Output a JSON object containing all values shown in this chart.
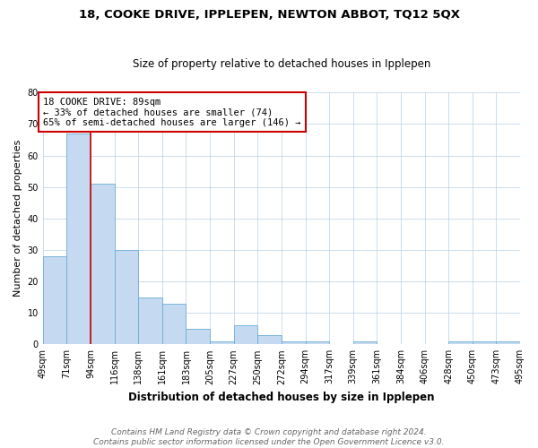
{
  "title": "18, COOKE DRIVE, IPPLEPEN, NEWTON ABBOT, TQ12 5QX",
  "subtitle": "Size of property relative to detached houses in Ipplepen",
  "xlabel": "Distribution of detached houses by size in Ipplepen",
  "ylabel": "Number of detached properties",
  "bar_values": [
    28,
    67,
    51,
    30,
    15,
    13,
    5,
    1,
    6,
    3,
    1,
    1,
    0,
    1,
    0,
    0,
    0,
    1,
    1,
    1
  ],
  "x_tick_labels": [
    "49sqm",
    "71sqm",
    "94sqm",
    "116sqm",
    "138sqm",
    "161sqm",
    "183sqm",
    "205sqm",
    "227sqm",
    "250sqm",
    "272sqm",
    "294sqm",
    "317sqm",
    "339sqm",
    "361sqm",
    "384sqm",
    "406sqm",
    "428sqm",
    "450sqm",
    "473sqm",
    "495sqm"
  ],
  "bar_color": "#c5d9f1",
  "bar_edge_color": "#6baed6",
  "red_line_x": 2.0,
  "ylim": [
    0,
    80
  ],
  "yticks": [
    0,
    10,
    20,
    30,
    40,
    50,
    60,
    70,
    80
  ],
  "annotation_title": "18 COOKE DRIVE: 89sqm",
  "annotation_line1": "← 33% of detached houses are smaller (74)",
  "annotation_line2": "65% of semi-detached houses are larger (146) →",
  "annotation_box_facecolor": "#ffffff",
  "annotation_box_edgecolor": "#cc0000",
  "footer_line1": "Contains HM Land Registry data © Crown copyright and database right 2024.",
  "footer_line2": "Contains public sector information licensed under the Open Government Licence v3.0.",
  "title_fontsize": 9.5,
  "subtitle_fontsize": 8.5,
  "xlabel_fontsize": 8.5,
  "ylabel_fontsize": 8,
  "tick_fontsize": 7,
  "annotation_fontsize": 7.5,
  "footer_fontsize": 6.5
}
